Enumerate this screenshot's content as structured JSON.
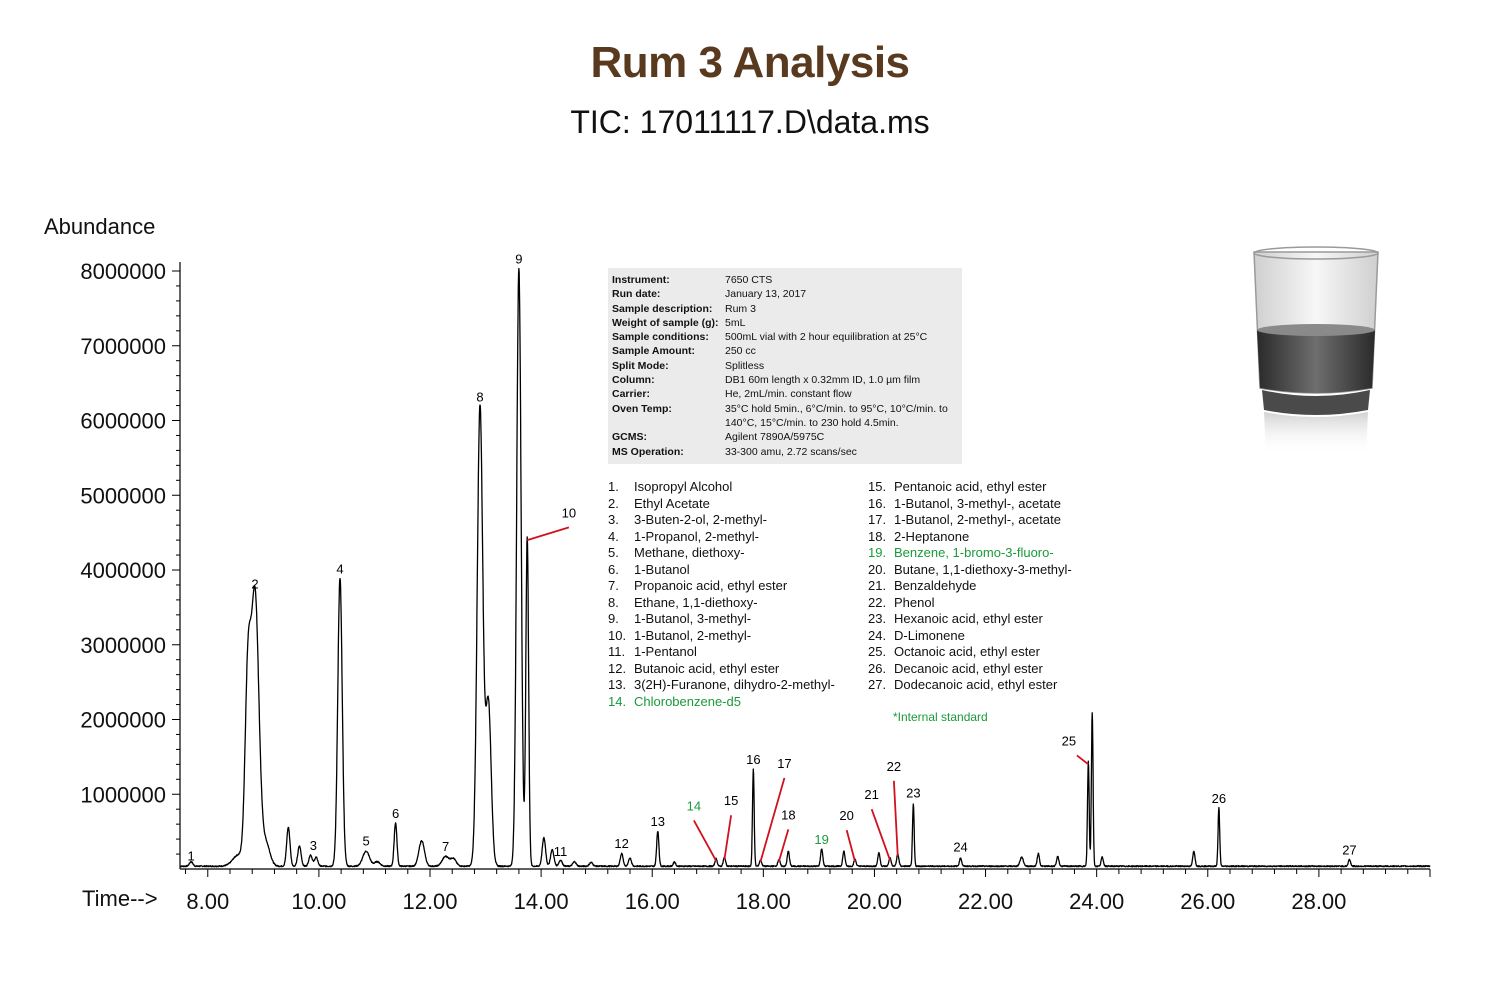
{
  "title": "Rum 3 Analysis",
  "subtitle": "TIC: 17011117.D\\data.ms",
  "chart_data": {
    "type": "line",
    "title": "Rum 3 Analysis",
    "subtitle": "TIC: 17011117.D\\data.ms",
    "ylabel": "Abundance",
    "xlabel": "Time-->",
    "xlim": [
      7.5,
      30.0
    ],
    "ylim": [
      0,
      8100000
    ],
    "x_ticks": [
      8,
      10,
      12,
      14,
      16,
      18,
      20,
      22,
      24,
      26,
      28
    ],
    "x_tick_labels": [
      "8.00",
      "10.00",
      "12.00",
      "14.00",
      "16.00",
      "18.00",
      "20.00",
      "22.00",
      "24.00",
      "26.00",
      "28.00"
    ],
    "y_ticks": [
      1000000,
      2000000,
      3000000,
      4000000,
      5000000,
      6000000,
      7000000,
      8000000
    ],
    "y_tick_labels": [
      "1000000",
      "2000000",
      "3000000",
      "4000000",
      "5000000",
      "6000000",
      "7000000",
      "8000000"
    ],
    "grid": false,
    "series_color": "#000000",
    "baseline": 30000,
    "peaks": [
      {
        "x": 7.7,
        "y": 60000,
        "w": 0.03
      },
      {
        "x": 8.55,
        "y": 150000,
        "w": 0.1
      },
      {
        "x": 8.72,
        "y": 2300000,
        "w": 0.05
      },
      {
        "x": 8.85,
        "y": 3650000,
        "w": 0.07
      },
      {
        "x": 9.05,
        "y": 300000,
        "w": 0.07
      },
      {
        "x": 9.45,
        "y": 520000,
        "w": 0.03
      },
      {
        "x": 9.65,
        "y": 270000,
        "w": 0.03
      },
      {
        "x": 9.85,
        "y": 150000,
        "w": 0.03
      },
      {
        "x": 9.95,
        "y": 120000,
        "w": 0.03
      },
      {
        "x": 10.38,
        "y": 3850000,
        "w": 0.04
      },
      {
        "x": 10.85,
        "y": 200000,
        "w": 0.06
      },
      {
        "x": 11.05,
        "y": 60000,
        "w": 0.05
      },
      {
        "x": 11.38,
        "y": 580000,
        "w": 0.025
      },
      {
        "x": 11.85,
        "y": 340000,
        "w": 0.05
      },
      {
        "x": 12.28,
        "y": 130000,
        "w": 0.06
      },
      {
        "x": 12.42,
        "y": 100000,
        "w": 0.05
      },
      {
        "x": 12.9,
        "y": 6150000,
        "w": 0.05
      },
      {
        "x": 13.05,
        "y": 2200000,
        "w": 0.05
      },
      {
        "x": 13.6,
        "y": 8000000,
        "w": 0.04
      },
      {
        "x": 13.75,
        "y": 4400000,
        "w": 0.025
      },
      {
        "x": 14.05,
        "y": 380000,
        "w": 0.03
      },
      {
        "x": 14.2,
        "y": 220000,
        "w": 0.03
      },
      {
        "x": 14.35,
        "y": 80000,
        "w": 0.03
      },
      {
        "x": 14.6,
        "y": 60000,
        "w": 0.03
      },
      {
        "x": 14.9,
        "y": 50000,
        "w": 0.03
      },
      {
        "x": 15.45,
        "y": 170000,
        "w": 0.025
      },
      {
        "x": 15.6,
        "y": 110000,
        "w": 0.025
      },
      {
        "x": 16.1,
        "y": 470000,
        "w": 0.02
      },
      {
        "x": 16.4,
        "y": 60000,
        "w": 0.02
      },
      {
        "x": 17.15,
        "y": 100000,
        "w": 0.02
      },
      {
        "x": 17.3,
        "y": 120000,
        "w": 0.02
      },
      {
        "x": 17.82,
        "y": 1300000,
        "w": 0.015
      },
      {
        "x": 17.95,
        "y": 80000,
        "w": 0.02
      },
      {
        "x": 18.28,
        "y": 90000,
        "w": 0.02
      },
      {
        "x": 18.45,
        "y": 200000,
        "w": 0.02
      },
      {
        "x": 19.05,
        "y": 230000,
        "w": 0.02
      },
      {
        "x": 19.45,
        "y": 200000,
        "w": 0.02
      },
      {
        "x": 19.65,
        "y": 90000,
        "w": 0.02
      },
      {
        "x": 20.08,
        "y": 180000,
        "w": 0.02
      },
      {
        "x": 20.28,
        "y": 110000,
        "w": 0.02
      },
      {
        "x": 20.42,
        "y": 160000,
        "w": 0.02
      },
      {
        "x": 20.7,
        "y": 830000,
        "w": 0.015
      },
      {
        "x": 21.55,
        "y": 110000,
        "w": 0.02
      },
      {
        "x": 22.65,
        "y": 120000,
        "w": 0.03
      },
      {
        "x": 22.95,
        "y": 170000,
        "w": 0.02
      },
      {
        "x": 23.3,
        "y": 130000,
        "w": 0.02
      },
      {
        "x": 23.85,
        "y": 1400000,
        "w": 0.015
      },
      {
        "x": 23.92,
        "y": 2050000,
        "w": 0.015
      },
      {
        "x": 24.1,
        "y": 120000,
        "w": 0.02
      },
      {
        "x": 25.75,
        "y": 200000,
        "w": 0.02
      },
      {
        "x": 26.2,
        "y": 780000,
        "w": 0.015
      },
      {
        "x": 28.55,
        "y": 90000,
        "w": 0.02
      }
    ],
    "annotations": [
      {
        "label": "1",
        "x": 7.7,
        "y": 60000,
        "color": "#000000"
      },
      {
        "label": "2",
        "x": 8.85,
        "y": 3700000,
        "color": "#000000"
      },
      {
        "label": "3",
        "x": 9.9,
        "y": 200000,
        "color": "#000000"
      },
      {
        "label": "4",
        "x": 10.38,
        "y": 3900000,
        "color": "#000000"
      },
      {
        "label": "5",
        "x": 10.85,
        "y": 260000,
        "color": "#000000"
      },
      {
        "label": "6",
        "x": 11.38,
        "y": 630000,
        "color": "#000000"
      },
      {
        "label": "7",
        "x": 12.28,
        "y": 190000,
        "color": "#000000"
      },
      {
        "label": "8",
        "x": 12.9,
        "y": 6200000,
        "color": "#000000"
      },
      {
        "label": "9",
        "x": 13.6,
        "y": 8050000,
        "color": "#000000"
      },
      {
        "label": "10",
        "x": 14.5,
        "y": 4650000,
        "color": "#000000",
        "lx": 13.75,
        "ly": 4400000,
        "line": "#d0121f"
      },
      {
        "label": "11",
        "x": 14.35,
        "y": 120000,
        "color": "#000000"
      },
      {
        "label": "12",
        "x": 15.45,
        "y": 230000,
        "color": "#000000"
      },
      {
        "label": "13",
        "x": 16.1,
        "y": 520000,
        "color": "#000000"
      },
      {
        "label": "14",
        "x": 16.75,
        "y": 730000,
        "color": "#1a9a3a",
        "lx": 17.15,
        "ly": 110000,
        "line": "#d0121f"
      },
      {
        "label": "15",
        "x": 17.42,
        "y": 800000,
        "color": "#000000",
        "lx": 17.3,
        "ly": 130000,
        "line": "#d0121f"
      },
      {
        "label": "16",
        "x": 17.82,
        "y": 1350000,
        "color": "#000000"
      },
      {
        "label": "17",
        "x": 18.38,
        "y": 1300000,
        "color": "#000000",
        "lx": 17.95,
        "ly": 100000,
        "line": "#d0121f"
      },
      {
        "label": "18",
        "x": 18.45,
        "y": 610000,
        "color": "#000000",
        "lx": 18.28,
        "ly": 100000,
        "line": "#d0121f"
      },
      {
        "label": "19",
        "x": 19.05,
        "y": 280000,
        "color": "#1a9a3a"
      },
      {
        "label": "20",
        "x": 19.5,
        "y": 600000,
        "color": "#000000",
        "lx": 19.65,
        "ly": 100000,
        "line": "#d0121f"
      },
      {
        "label": "21",
        "x": 19.95,
        "y": 880000,
        "color": "#000000",
        "lx": 20.28,
        "ly": 120000,
        "line": "#d0121f"
      },
      {
        "label": "22",
        "x": 20.35,
        "y": 1260000,
        "color": "#000000",
        "lx": 20.42,
        "ly": 170000,
        "line": "#d0121f"
      },
      {
        "label": "23",
        "x": 20.7,
        "y": 900000,
        "color": "#000000"
      },
      {
        "label": "24",
        "x": 21.55,
        "y": 180000,
        "color": "#000000"
      },
      {
        "label": "25",
        "x": 23.5,
        "y": 1600000,
        "color": "#000000",
        "lx": 23.85,
        "ly": 1400000,
        "line": "#d0121f"
      },
      {
        "label": "26",
        "x": 26.2,
        "y": 830000,
        "color": "#000000"
      },
      {
        "label": "27",
        "x": 28.55,
        "y": 140000,
        "color": "#000000"
      }
    ]
  },
  "info_box": [
    {
      "k": "Instrument:",
      "v": "7650 CTS"
    },
    {
      "k": "Run date:",
      "v": "January 13, 2017"
    },
    {
      "k": "Sample description:",
      "v": "Rum 3"
    },
    {
      "k": "Weight of sample (g):",
      "v": "5mL"
    },
    {
      "k": "Sample conditions:",
      "v": "500mL vial with 2 hour equilibration at 25°C"
    },
    {
      "k": "Sample Amount:",
      "v": "250 cc"
    },
    {
      "k": "Split Mode:",
      "v": "Splitless"
    },
    {
      "k": "Column:",
      "v": "DB1 60m length x 0.32mm ID, 1.0 µm film"
    },
    {
      "k": "Carrier:",
      "v": "He, 2mL/min. constant flow"
    },
    {
      "k": "Oven Temp:",
      "v": "35°C hold 5min., 6°C/min. to 95°C, 10°C/min. to 140°C, 15°C/min. to 230 hold 4.5min."
    },
    {
      "k": "GCMS:",
      "v": "Agilent 7890A/5975C"
    },
    {
      "k": "MS Operation:",
      "v": "33-300 amu, 2.72 scans/sec"
    }
  ],
  "compounds_left": [
    {
      "n": "1.",
      "name": "Isopropyl Alcohol",
      "std": false
    },
    {
      "n": "2.",
      "name": "Ethyl Acetate",
      "std": false
    },
    {
      "n": "3.",
      "name": "3-Buten-2-ol, 2-methyl-",
      "std": false
    },
    {
      "n": "4.",
      "name": "1-Propanol, 2-methyl-",
      "std": false
    },
    {
      "n": "5.",
      "name": "Methane, diethoxy-",
      "std": false
    },
    {
      "n": "6.",
      "name": "1-Butanol",
      "std": false
    },
    {
      "n": "7.",
      "name": "Propanoic acid, ethyl ester",
      "std": false
    },
    {
      "n": "8.",
      "name": "Ethane, 1,1-diethoxy-",
      "std": false
    },
    {
      "n": "9.",
      "name": "1-Butanol, 3-methyl-",
      "std": false
    },
    {
      "n": "10.",
      "name": "1-Butanol, 2-methyl-",
      "std": false
    },
    {
      "n": "11.",
      "name": "1-Pentanol",
      "std": false
    },
    {
      "n": "12.",
      "name": "Butanoic acid, ethyl ester",
      "std": false
    },
    {
      "n": "13.",
      "name": "3(2H)-Furanone, dihydro-2-methyl-",
      "std": false
    },
    {
      "n": "14.",
      "name": "Chlorobenzene-d5",
      "std": true
    }
  ],
  "compounds_right": [
    {
      "n": "15.",
      "name": "Pentanoic acid, ethyl ester",
      "std": false
    },
    {
      "n": "16.",
      "name": "1-Butanol, 3-methyl-, acetate",
      "std": false
    },
    {
      "n": "17.",
      "name": "1-Butanol, 2-methyl-, acetate",
      "std": false
    },
    {
      "n": "18.",
      "name": "2-Heptanone",
      "std": false
    },
    {
      "n": "19.",
      "name": "Benzene, 1-bromo-3-fluoro-",
      "std": true
    },
    {
      "n": "20.",
      "name": "Butane, 1,1-diethoxy-3-methyl-",
      "std": false
    },
    {
      "n": "21.",
      "name": "Benzaldehyde",
      "std": false
    },
    {
      "n": "22.",
      "name": "Phenol",
      "std": false
    },
    {
      "n": "23.",
      "name": "Hexanoic acid, ethyl ester",
      "std": false
    },
    {
      "n": "24.",
      "name": "D-Limonene",
      "std": false
    },
    {
      "n": "25.",
      "name": "Octanoic acid, ethyl ester",
      "std": false
    },
    {
      "n": "26.",
      "name": "Decanoic acid, ethyl ester",
      "std": false
    },
    {
      "n": "27.",
      "name": "Dodecanoic acid, ethyl ester",
      "std": false
    }
  ],
  "note": "*Internal standard",
  "colors": {
    "title": "#5a3a1e",
    "standard": "#1a9a3a",
    "leader": "#d0121f",
    "info_bg": "#ebebeb"
  },
  "image": "rum-glass-icon"
}
